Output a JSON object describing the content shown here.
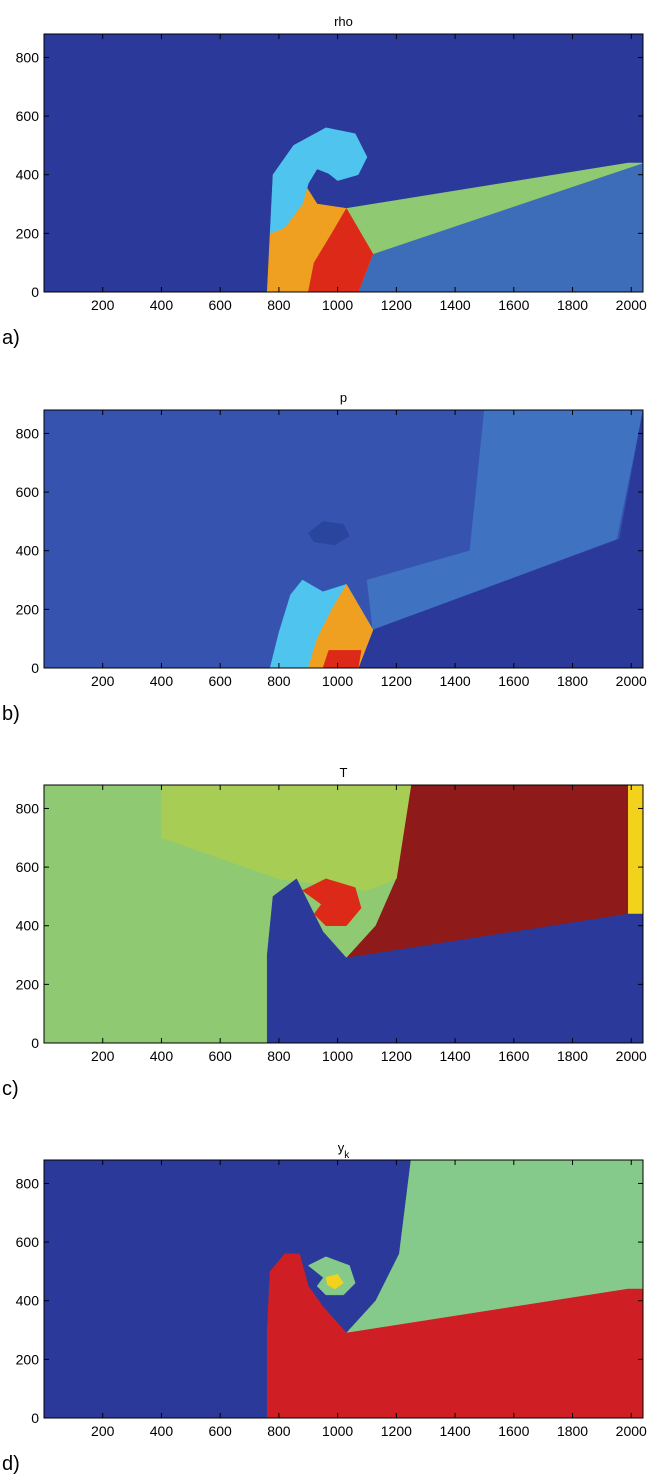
{
  "chart_data": [
    {
      "type": "heatmap",
      "panel_label": "a)",
      "title": "rho",
      "title_sub": "",
      "x_ticks": [
        200,
        400,
        600,
        800,
        1000,
        1200,
        1400,
        1600,
        1800,
        2000
      ],
      "y_ticks": [
        0,
        200,
        400,
        600,
        800
      ],
      "xlim": [
        0,
        2040
      ],
      "ylim": [
        0,
        880
      ],
      "colormap": "jet",
      "background": "#2b3a9a",
      "features": [
        {
          "name": "post-shock-region",
          "color": "#3d6cb8",
          "points": [
            [
              1120,
              130
            ],
            [
              2040,
              440
            ],
            [
              2040,
              0
            ],
            [
              1070,
              0
            ]
          ]
        },
        {
          "name": "transmitted-wedge",
          "color": "#8fca72",
          "points": [
            [
              1030,
              285
            ],
            [
              1990,
              440
            ],
            [
              2040,
              440
            ],
            [
              1120,
              130
            ]
          ]
        },
        {
          "name": "compressed-core",
          "color": "#f0a020",
          "points": [
            [
              760,
              0
            ],
            [
              1070,
              0
            ],
            [
              1120,
              130
            ],
            [
              1030,
              285
            ],
            [
              930,
              300
            ],
            [
              880,
              380
            ],
            [
              800,
              350
            ],
            [
              770,
              200
            ]
          ]
        },
        {
          "name": "hot-core",
          "color": "#dd2a18",
          "points": [
            [
              900,
              0
            ],
            [
              1070,
              0
            ],
            [
              1120,
              130
            ],
            [
              1030,
              285
            ],
            [
              980,
              200
            ],
            [
              920,
              100
            ]
          ]
        },
        {
          "name": "vortex-sheet",
          "color": "#4fc4ee",
          "points": [
            [
              770,
              200
            ],
            [
              780,
              400
            ],
            [
              850,
              500
            ],
            [
              960,
              560
            ],
            [
              1060,
              540
            ],
            [
              1100,
              460
            ],
            [
              1070,
              400
            ],
            [
              1000,
              380
            ],
            [
              950,
              420
            ],
            [
              980,
              470
            ],
            [
              1020,
              460
            ],
            [
              1020,
              420
            ],
            [
              980,
              400
            ],
            [
              930,
              420
            ],
            [
              900,
              370
            ],
            [
              880,
              300
            ],
            [
              820,
              220
            ]
          ]
        }
      ]
    },
    {
      "type": "heatmap",
      "panel_label": "b)",
      "title": "p",
      "title_sub": "",
      "x_ticks": [
        200,
        400,
        600,
        800,
        1000,
        1200,
        1400,
        1600,
        1800,
        2000
      ],
      "y_ticks": [
        0,
        200,
        400,
        600,
        800
      ],
      "xlim": [
        0,
        2040
      ],
      "ylim": [
        0,
        880
      ],
      "colormap": "jet",
      "background": "#3653b0",
      "features": [
        {
          "name": "upper-right-region",
          "color": "#3f72c0",
          "points": [
            [
              1120,
              130
            ],
            [
              1950,
              440
            ],
            [
              2040,
              880
            ],
            [
              1500,
              880
            ],
            [
              1450,
              400
            ],
            [
              1100,
              300
            ]
          ]
        },
        {
          "name": "low-pressure-region",
          "color": "#2b3a9a",
          "points": [
            [
              1120,
              130
            ],
            [
              1960,
              440
            ],
            [
              2040,
              880
            ],
            [
              2040,
              0
            ],
            [
              1070,
              0
            ]
          ]
        },
        {
          "name": "vortex-core",
          "color": "#2a459e",
          "points": [
            [
              900,
              460
            ],
            [
              950,
              500
            ],
            [
              1020,
              490
            ],
            [
              1040,
              450
            ],
            [
              990,
              420
            ],
            [
              920,
              430
            ]
          ]
        },
        {
          "name": "shock-region",
          "color": "#4fc4ee",
          "points": [
            [
              770,
              0
            ],
            [
              1070,
              0
            ],
            [
              1120,
              130
            ],
            [
              1030,
              285
            ],
            [
              950,
              260
            ],
            [
              880,
              300
            ],
            [
              840,
              250
            ],
            [
              800,
              120
            ]
          ]
        },
        {
          "name": "high-pressure-core",
          "color": "#f0a020",
          "points": [
            [
              900,
              0
            ],
            [
              1070,
              0
            ],
            [
              1120,
              130
            ],
            [
              1030,
              285
            ],
            [
              980,
              200
            ],
            [
              930,
              100
            ]
          ]
        },
        {
          "name": "peak-pressure",
          "color": "#dd2a18",
          "points": [
            [
              950,
              0
            ],
            [
              1070,
              0
            ],
            [
              1080,
              60
            ],
            [
              970,
              60
            ]
          ]
        }
      ]
    },
    {
      "type": "heatmap",
      "panel_label": "c)",
      "title": "T",
      "title_sub": "",
      "x_ticks": [
        200,
        400,
        600,
        800,
        1000,
        1200,
        1400,
        1600,
        1800,
        2000
      ],
      "y_ticks": [
        0,
        200,
        400,
        600,
        800
      ],
      "xlim": [
        0,
        2040
      ],
      "ylim": [
        0,
        880
      ],
      "colormap": "jet",
      "background": "#8fca72",
      "features": [
        {
          "name": "hot-gas-region",
          "color": "#8e1a1a",
          "points": [
            [
              1250,
              880
            ],
            [
              1990,
              880
            ],
            [
              1990,
              440
            ],
            [
              1030,
              290
            ],
            [
              1130,
              400
            ],
            [
              1200,
              560
            ]
          ]
        },
        {
          "name": "right-edge-band",
          "color": "#f2d21a",
          "points": [
            [
              1990,
              880
            ],
            [
              2040,
              880
            ],
            [
              2040,
              440
            ],
            [
              1990,
              440
            ]
          ]
        },
        {
          "name": "upper-left-field",
          "color": "#a8cd55",
          "points": [
            [
              400,
              880
            ],
            [
              1250,
              880
            ],
            [
              1200,
              560
            ],
            [
              1100,
              520
            ],
            [
              800,
              560
            ],
            [
              400,
              700
            ]
          ]
        },
        {
          "name": "cold-region",
          "color": "#2b3a9a",
          "points": [
            [
              760,
              0
            ],
            [
              2040,
              0
            ],
            [
              2040,
              440
            ],
            [
              1990,
              440
            ],
            [
              1030,
              290
            ],
            [
              950,
              380
            ],
            [
              920,
              440
            ],
            [
              860,
              560
            ],
            [
              780,
              500
            ],
            [
              760,
              300
            ]
          ]
        },
        {
          "name": "vortex-roll",
          "color": "#dd2a18",
          "points": [
            [
              880,
              520
            ],
            [
              960,
              560
            ],
            [
              1060,
              530
            ],
            [
              1080,
              460
            ],
            [
              1030,
              400
            ],
            [
              960,
              400
            ],
            [
              920,
              440
            ],
            [
              950,
              480
            ],
            [
              1000,
              470
            ],
            [
              990,
              440
            ]
          ]
        }
      ]
    },
    {
      "type": "heatmap",
      "panel_label": "d)",
      "title": "y",
      "title_sub": "k",
      "x_ticks": [
        200,
        400,
        600,
        800,
        1000,
        1200,
        1400,
        1600,
        1800,
        2000
      ],
      "y_ticks": [
        0,
        200,
        400,
        600,
        800
      ],
      "xlim": [
        0,
        2040
      ],
      "ylim": [
        0,
        880
      ],
      "colormap": "jet",
      "background": "#2b3a9a",
      "features": [
        {
          "name": "green-species-region",
          "color": "#85ca8a",
          "points": [
            [
              1250,
              880
            ],
            [
              2040,
              880
            ],
            [
              2040,
              440
            ],
            [
              1990,
              440
            ],
            [
              1030,
              290
            ],
            [
              1130,
              400
            ],
            [
              1210,
              560
            ]
          ]
        },
        {
          "name": "red-species-region",
          "color": "#cf1f24",
          "points": [
            [
              760,
              0
            ],
            [
              2040,
              0
            ],
            [
              2040,
              440
            ],
            [
              1990,
              440
            ],
            [
              1030,
              290
            ],
            [
              950,
              380
            ],
            [
              900,
              450
            ],
            [
              870,
              560
            ],
            [
              820,
              560
            ],
            [
              770,
              500
            ],
            [
              760,
              300
            ]
          ]
        },
        {
          "name": "spiral-outer",
          "color": "#85ca8a",
          "points": [
            [
              900,
              520
            ],
            [
              960,
              550
            ],
            [
              1040,
              520
            ],
            [
              1060,
              460
            ],
            [
              1020,
              420
            ],
            [
              960,
              420
            ],
            [
              930,
              450
            ],
            [
              960,
              490
            ],
            [
              1010,
              480
            ],
            [
              1000,
              440
            ]
          ]
        },
        {
          "name": "spiral-inner",
          "color": "#f2d21a",
          "points": [
            [
              960,
              480
            ],
            [
              1000,
              490
            ],
            [
              1020,
              460
            ],
            [
              990,
              440
            ],
            [
              965,
              455
            ]
          ]
        }
      ]
    }
  ]
}
